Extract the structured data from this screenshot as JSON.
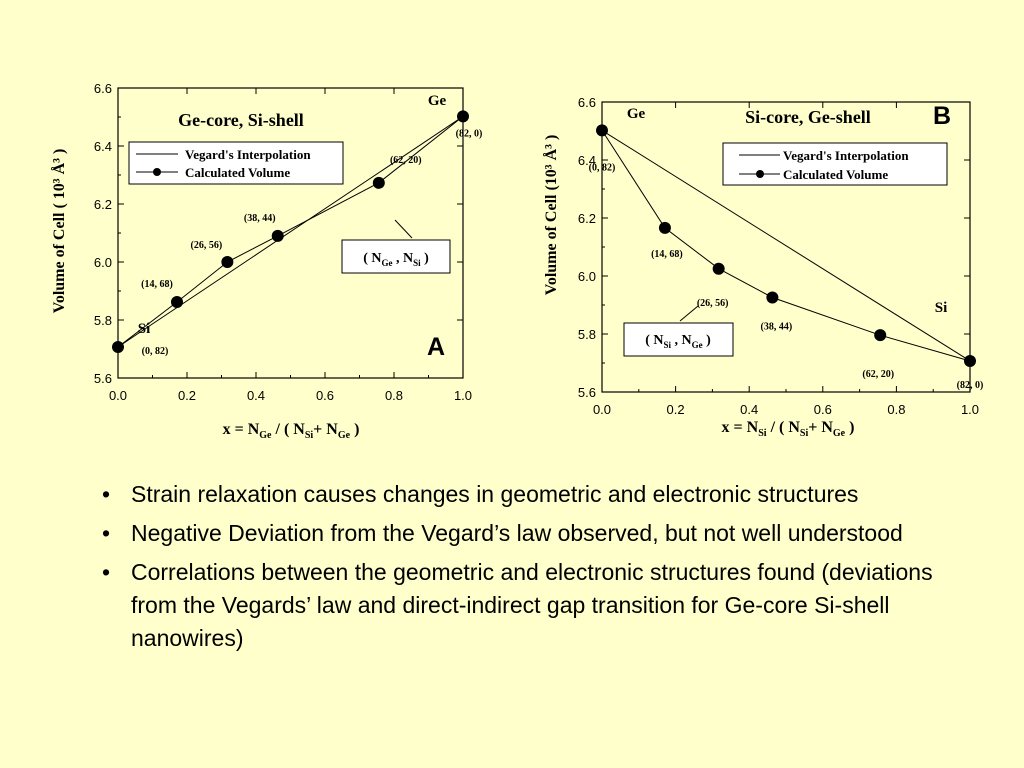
{
  "chart_data": [
    {
      "id": "A",
      "type": "line",
      "title": "Ge-core, Si-shell",
      "panel_label": "A",
      "xlabel": {
        "main": "x = N",
        "sub1": "Ge",
        "mid": " / ( N",
        "sub2": "Si",
        "plus": "+ N",
        "sub3": "Ge",
        "end": " )"
      },
      "ylabel": "Volume of Cell ( 10³ Å³ )",
      "xlim": [
        0,
        1
      ],
      "ylim": [
        5.6,
        6.6
      ],
      "xticks": [
        "0.0",
        "0.2",
        "0.4",
        "0.6",
        "0.8",
        "1.0"
      ],
      "yticks": [
        "5.6",
        "5.8",
        "6.0",
        "6.2",
        "6.4",
        "6.6"
      ],
      "grid": false,
      "legend_position": "top-left",
      "legend": [
        "Vegard's Interpolation",
        "Calculated Volume"
      ],
      "vegard": {
        "x": [
          0,
          1
        ],
        "y": [
          5.707,
          6.502
        ]
      },
      "calculated": {
        "x": [
          0,
          0.171,
          0.317,
          0.463,
          0.756,
          1.0
        ],
        "y": [
          5.707,
          5.862,
          6.0,
          6.09,
          6.273,
          6.502
        ],
        "labels": [
          "(0, 82)",
          "(14, 68)",
          "(26, 56)",
          "(38, 44)",
          "(62, 20)",
          "(82, 0)"
        ]
      },
      "annotations": {
        "left": "Si",
        "right": "Ge",
        "box": {
          "open": "( N",
          "s1": "Ge",
          "mid": " , N",
          "s2": "Si",
          "close": " )"
        }
      }
    },
    {
      "id": "B",
      "type": "line",
      "title": "Si-core, Ge-shell",
      "panel_label": "B",
      "xlabel": {
        "main": "x = N",
        "sub1": "Si",
        "mid": " / ( N",
        "sub2": "Si",
        "plus": "+ N",
        "sub3": "Ge",
        "end": " )"
      },
      "ylabel": "Volume of Cell (10³ Å³ )",
      "xlim": [
        0,
        1
      ],
      "ylim": [
        5.6,
        6.6
      ],
      "xticks": [
        "0.0",
        "0.2",
        "0.4",
        "0.6",
        "0.8",
        "1.0"
      ],
      "yticks": [
        "5.6",
        "5.8",
        "6.0",
        "6.2",
        "6.4",
        "6.6"
      ],
      "grid": false,
      "legend_position": "top-right",
      "legend": [
        "Vegard's Interpolation",
        "Calculated Volume"
      ],
      "vegard": {
        "x": [
          0,
          1
        ],
        "y": [
          6.502,
          5.707
        ]
      },
      "calculated": {
        "x": [
          0,
          0.171,
          0.317,
          0.463,
          0.756,
          1.0
        ],
        "y": [
          6.502,
          6.166,
          6.025,
          5.926,
          5.796,
          5.707
        ],
        "labels": [
          "(0, 82)",
          "(14, 68)",
          "(26, 56)",
          "(38, 44)",
          "(62, 20)",
          "(82, 0)"
        ]
      },
      "annotations": {
        "left": "Ge",
        "right": "Si",
        "box": {
          "open": "( N",
          "s1": "Si",
          "mid": " , N",
          "s2": "Ge",
          "close": " )"
        }
      }
    }
  ],
  "bullets": [
    "Strain relaxation causes changes in geometric and electronic structures",
    "Negative Deviation from the Vegard’s law observed, but not well understood",
    "Correlations between the geometric and electronic structures found (deviations from the Vegards’ law and direct-indirect gap transition for Ge-core Si-shell nanowires)"
  ]
}
